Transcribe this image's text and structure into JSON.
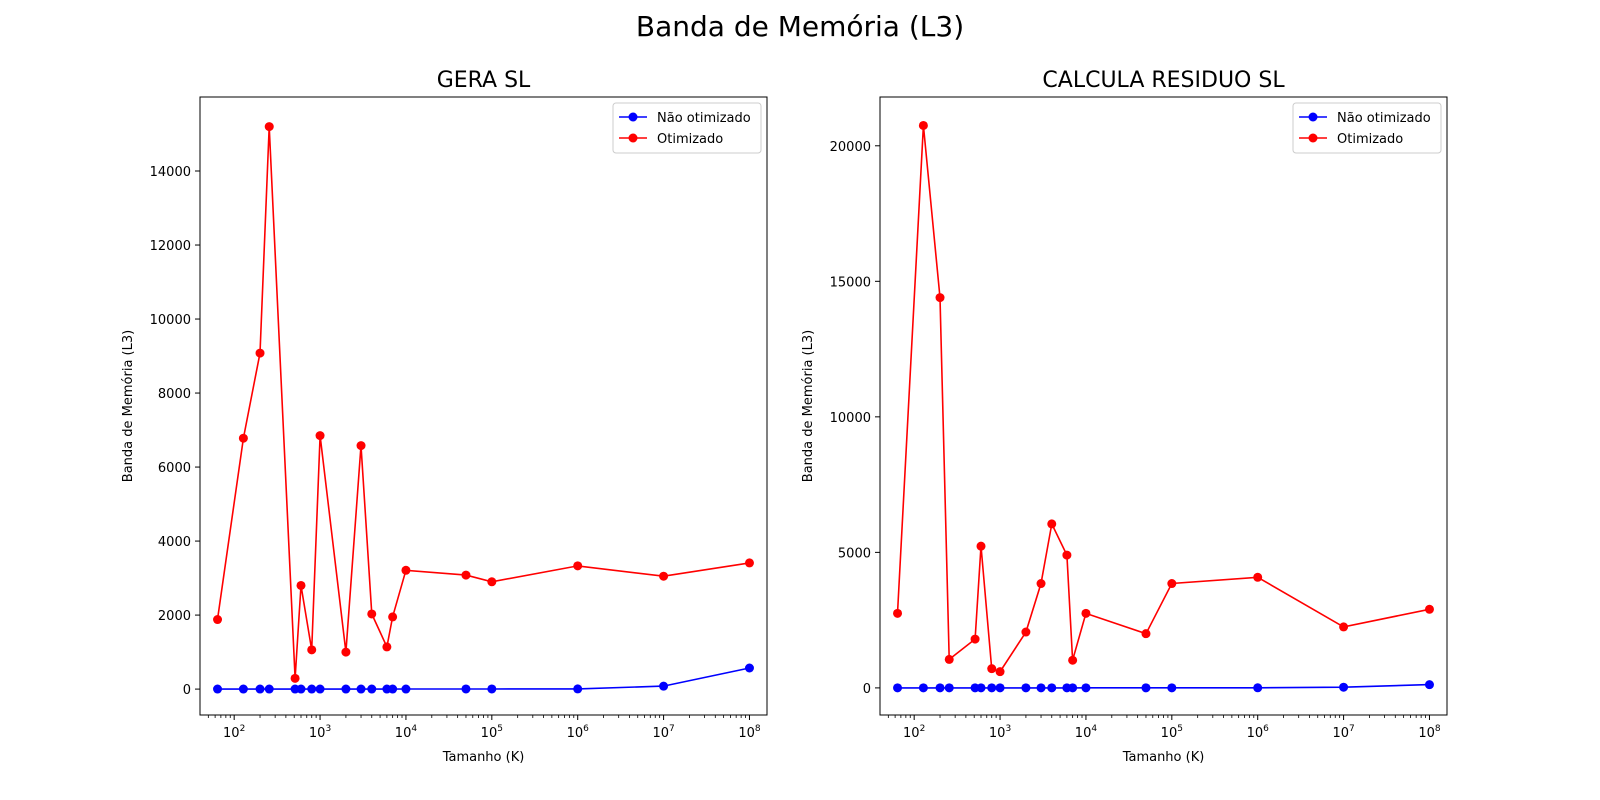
{
  "figure": {
    "suptitle": "Banda de Memória (L3)"
  },
  "chart_data": [
    {
      "type": "line",
      "title": "GERA SL",
      "xlabel": "Tamanho (K)",
      "ylabel": "Banda de Memória (L3)",
      "xscale": "log",
      "xlim": [
        40,
        160000000
      ],
      "ylim": [
        -700,
        16000
      ],
      "yticks": [
        0,
        2000,
        4000,
        6000,
        8000,
        10000,
        12000,
        14000
      ],
      "xtick_labels": [
        "10^2",
        "10^3",
        "10^4",
        "10^5",
        "10^6",
        "10^7",
        "10^8"
      ],
      "legend_position": "top-right",
      "grid": false,
      "x": [
        64,
        128,
        200,
        256,
        512,
        600,
        800,
        1000,
        2000,
        3000,
        4000,
        6000,
        7000,
        10000,
        50000,
        100000,
        1000000,
        10000000,
        100000000
      ],
      "series": [
        {
          "name": "Não otimizado",
          "color": "#0000ff",
          "values": [
            1,
            1,
            1,
            1,
            1,
            1,
            1,
            1,
            1,
            1,
            1,
            1,
            1,
            2,
            3,
            3,
            5,
            80,
            570
          ]
        },
        {
          "name": "Otimizado",
          "color": "#ff0000",
          "values": [
            1880,
            6780,
            9080,
            15200,
            290,
            2800,
            1060,
            6850,
            1000,
            6580,
            2030,
            1140,
            1950,
            3210,
            3080,
            2900,
            3330,
            3050,
            3410
          ]
        }
      ]
    },
    {
      "type": "line",
      "title": "CALCULA RESIDUO SL",
      "xlabel": "Tamanho (K)",
      "ylabel": "Banda de Memória (L3)",
      "xscale": "log",
      "xlim": [
        40,
        160000000
      ],
      "ylim": [
        -1000,
        21800
      ],
      "yticks": [
        0,
        5000,
        10000,
        15000,
        20000
      ],
      "xtick_labels": [
        "10^2",
        "10^3",
        "10^4",
        "10^5",
        "10^6",
        "10^7",
        "10^8"
      ],
      "legend_position": "top-right",
      "grid": false,
      "x": [
        64,
        128,
        200,
        256,
        512,
        600,
        800,
        1000,
        2000,
        3000,
        4000,
        6000,
        7000,
        10000,
        50000,
        100000,
        1000000,
        10000000,
        100000000
      ],
      "series": [
        {
          "name": "Não otimizado",
          "color": "#0000ff",
          "values": [
            1,
            1,
            1,
            1,
            1,
            1,
            1,
            1,
            1,
            1,
            1,
            1,
            1,
            2,
            3,
            3,
            5,
            25,
            120
          ]
        },
        {
          "name": "Otimizado",
          "color": "#ff0000",
          "values": [
            2750,
            20750,
            14400,
            1050,
            1800,
            5230,
            710,
            600,
            2060,
            3850,
            6050,
            4900,
            1020,
            2750,
            2000,
            3850,
            4080,
            2250,
            2900
          ]
        }
      ]
    }
  ]
}
